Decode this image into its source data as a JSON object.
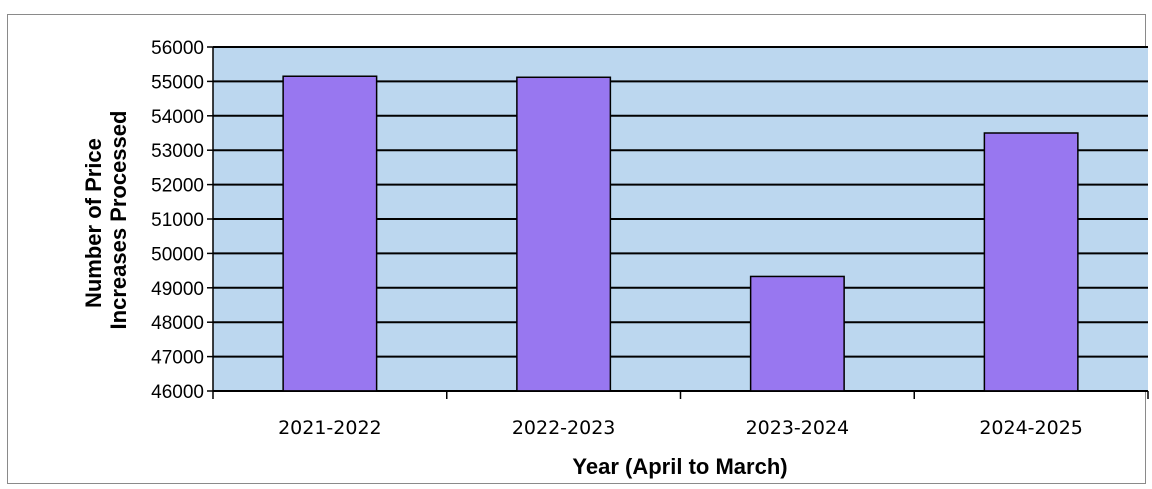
{
  "chart_data": {
    "type": "bar",
    "title": "",
    "categories": [
      "2021-2022",
      "2022-2023",
      "2023-2024",
      "2024-2025"
    ],
    "values": [
      55150,
      55120,
      49330,
      53500
    ],
    "xlabel": "Year (April to March)",
    "ylabel_lines": [
      "Number of Price",
      "Increases Processed"
    ],
    "ylim": [
      46000,
      56000
    ],
    "yticks": [
      "46000",
      "47000",
      "48000",
      "49000",
      "50000",
      "51000",
      "52000",
      "53000",
      "54000",
      "55000",
      "56000"
    ],
    "grid": true,
    "legend": "none",
    "colors": {
      "plot_background": "#bcd7ef",
      "bar_fill": "#9877f0",
      "bar_stroke": "#000000",
      "gridline": "#000000"
    }
  }
}
